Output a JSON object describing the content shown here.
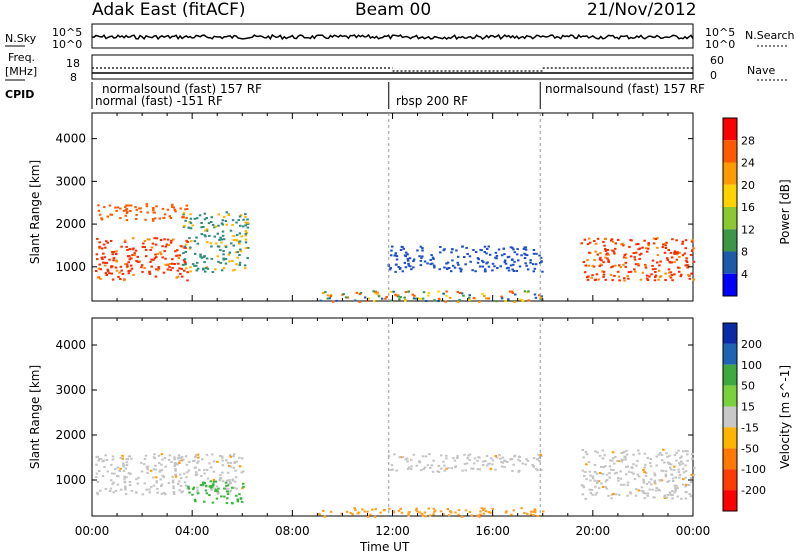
{
  "header": {
    "title_left": "Adak East (fitACF)",
    "title_center": "Beam 00",
    "title_right": "21/Nov/2012"
  },
  "top_panels": {
    "nsky_label": "N.Sky",
    "nsky_ticks": [
      "10^5",
      "10^0"
    ],
    "nsearch_label": "N.Search",
    "nsearch_ticks": [
      "10^5",
      "10^0"
    ],
    "freq_label": "Freq.",
    "freq_unit": "[MHz]",
    "freq_ticks": [
      "18",
      "8"
    ],
    "nave_label": "Nave",
    "nave_ticks": [
      "60",
      "0"
    ],
    "cpid_label": "CPID"
  },
  "cpid_segments": [
    {
      "text_top": "normalsound (fast) 157 RF",
      "text_bottom": "normal (fast) -151 RF"
    },
    {
      "text_top": "",
      "text_bottom": "rbsp 200 RF"
    },
    {
      "text_top": "normalsound (fast) 157 RF",
      "text_bottom": ""
    }
  ],
  "chart_data": [
    {
      "type": "heatmap",
      "panel": "power",
      "ylabel": "Slant Range [km]",
      "ylim": [
        200,
        4600
      ],
      "yticks": [
        "1000",
        "2000",
        "3000",
        "4000"
      ],
      "xlim_hours": [
        0,
        24
      ],
      "colorbar": {
        "label": "Power [dB]",
        "ticks": [
          "28",
          "24",
          "20",
          "16",
          "12",
          "8",
          "4"
        ],
        "colors": [
          "#ff0000",
          "#ff5a00",
          "#ff9a00",
          "#ffd200",
          "#8cc832",
          "#3c9646",
          "#1e5aaa",
          "#0000ff"
        ]
      },
      "regions": [
        {
          "t_start": 0.1,
          "t_end": 3.8,
          "r_start": 700,
          "r_end": 1700,
          "level": "red"
        },
        {
          "t_start": 0.2,
          "t_end": 3.8,
          "r_start": 2100,
          "r_end": 2500,
          "level": "red-orange"
        },
        {
          "t_start": 3.6,
          "t_end": 6.2,
          "r_start": 900,
          "r_end": 2300,
          "level": "blue-green"
        },
        {
          "t_start": 11.8,
          "t_end": 18.0,
          "r_start": 900,
          "r_end": 1500,
          "level": "blue"
        },
        {
          "t_start": 19.5,
          "t_end": 24.0,
          "r_start": 700,
          "r_end": 1700,
          "level": "red"
        },
        {
          "t_start": 9.0,
          "t_end": 18.0,
          "r_start": 200,
          "r_end": 450,
          "level": "mixed"
        }
      ]
    },
    {
      "type": "heatmap",
      "panel": "velocity",
      "ylabel": "Slant Range [km]",
      "ylim": [
        200,
        4600
      ],
      "yticks": [
        "1000",
        "2000",
        "3000",
        "4000"
      ],
      "xlim_hours": [
        0,
        24
      ],
      "colorbar": {
        "label": "Velocity [m s^-1]",
        "ticks": [
          "200",
          "100",
          "50",
          "15",
          "-15",
          "-50",
          "-100",
          "-200"
        ],
        "colors": [
          "#0a2aa8",
          "#1e64b4",
          "#3caa3c",
          "#78d23c",
          "#c8c8c8",
          "#ffb400",
          "#ff7800",
          "#ff3c00",
          "#ff0000"
        ]
      },
      "regions": [
        {
          "t_start": 0.1,
          "t_end": 6.0,
          "r_start": 700,
          "r_end": 1600,
          "level": "gray"
        },
        {
          "t_start": 3.8,
          "t_end": 6.0,
          "r_start": 500,
          "r_end": 1000,
          "level": "green"
        },
        {
          "t_start": 11.8,
          "t_end": 18.0,
          "r_start": 1200,
          "r_end": 1600,
          "level": "gray"
        },
        {
          "t_start": 19.5,
          "t_end": 24.0,
          "r_start": 600,
          "r_end": 1700,
          "level": "gray"
        },
        {
          "t_start": 9.0,
          "t_end": 18.0,
          "r_start": 200,
          "r_end": 400,
          "level": "orange"
        }
      ]
    }
  ],
  "x_axis": {
    "ticks": [
      "00:00",
      "04:00",
      "08:00",
      "12:00",
      "16:00",
      "20:00",
      "00:00"
    ],
    "label": "Time UT"
  }
}
